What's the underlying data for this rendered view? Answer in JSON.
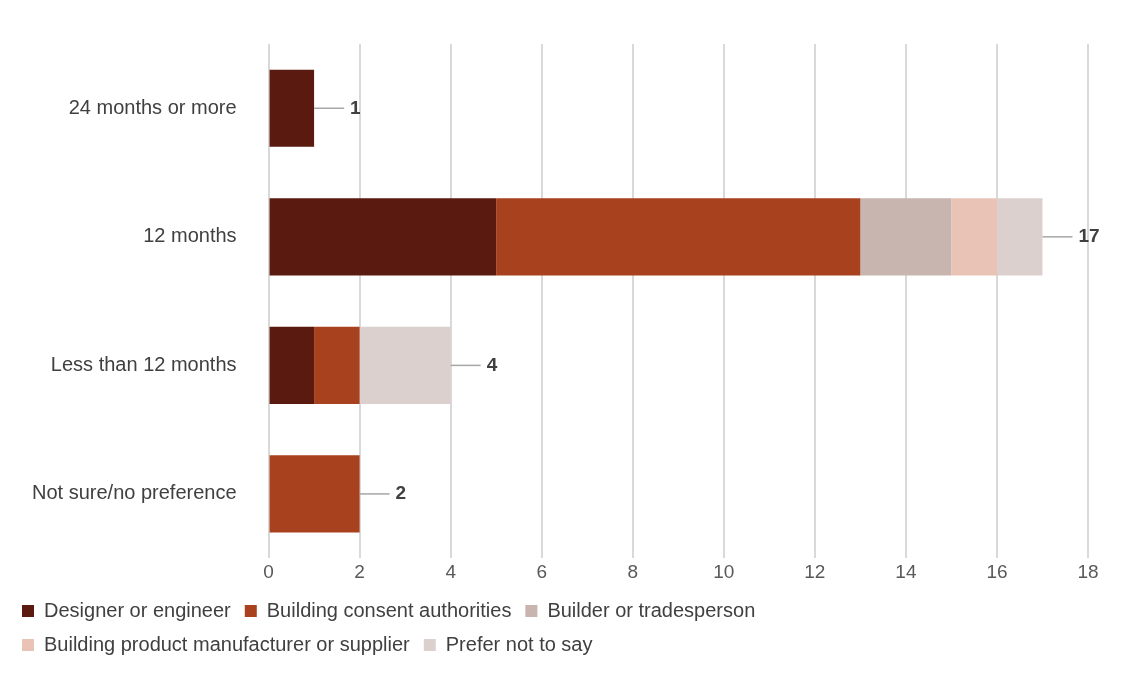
{
  "chart_data": {
    "type": "bar",
    "orientation": "horizontal",
    "stacked": true,
    "categories": [
      "24 months or more",
      "12 months",
      "Less than 12 months",
      "Not sure/no preference"
    ],
    "series": [
      {
        "name": "Designer or engineer",
        "color": "#5a1a10",
        "values": [
          1,
          5,
          1,
          null
        ]
      },
      {
        "name": "Building consent authorities",
        "color": "#a8421e",
        "values": [
          null,
          8,
          1,
          2
        ]
      },
      {
        "name": "Builder or tradesperson",
        "color": "#c9b5b0",
        "values": [
          null,
          2,
          null,
          null
        ]
      },
      {
        "name": "Building product manufacturer or supplier",
        "color": "#e8c3b6",
        "values": [
          null,
          1,
          null,
          null
        ]
      },
      {
        "name": "Prefer not to say",
        "color": "#dcd0ce",
        "values": [
          null,
          1,
          2,
          null
        ]
      }
    ],
    "totals": [
      "1",
      "17",
      "4",
      "2"
    ],
    "xlim": [
      0,
      18
    ],
    "xticks": [
      0,
      2,
      4,
      6,
      8,
      10,
      12,
      14,
      16,
      18
    ],
    "grid": "x",
    "legend": "bottom"
  }
}
